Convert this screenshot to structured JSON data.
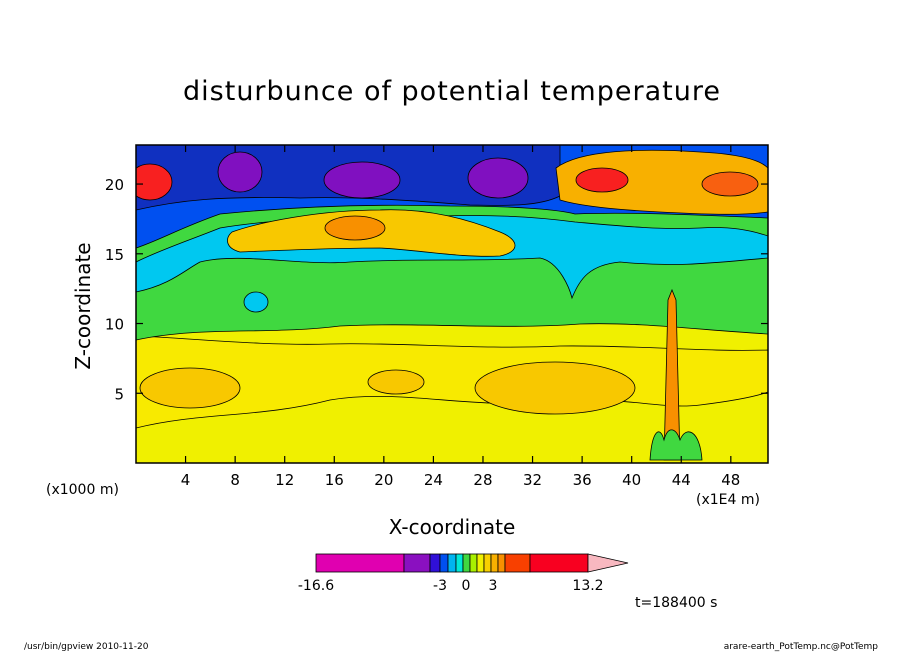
{
  "chart_data": {
    "type": "heatmap",
    "title": "disturbunce of potential temperature",
    "xlabel": "X-coordinate",
    "ylabel": "Z-coordinate",
    "x_unit_left": "(x1000 m)",
    "x_unit_right": "(x1E4 m)",
    "x_ticks": [
      "4",
      "8",
      "12",
      "16",
      "20",
      "24",
      "28",
      "32",
      "36",
      "40",
      "44",
      "48"
    ],
    "x_tick_values": [
      4,
      8,
      12,
      16,
      20,
      24,
      28,
      32,
      36,
      40,
      44,
      48
    ],
    "y_ticks": [
      "5",
      "10",
      "15",
      "20"
    ],
    "y_tick_values": [
      5,
      10,
      15,
      20
    ],
    "xlim": [
      0,
      51
    ],
    "ylim": [
      0,
      22.8
    ],
    "colorbar": {
      "min": -16.6,
      "max": 13.2,
      "labels": [
        "-16.6",
        "-3",
        "0",
        "3",
        "13.2"
      ],
      "label_values": [
        -16.6,
        -3,
        0,
        3,
        13.2
      ],
      "colors": [
        "#e000b0",
        "#8a10c0",
        "#3010d8",
        "#0050f0",
        "#00b4f0",
        "#00e8d8",
        "#40d840",
        "#a8f000",
        "#f0f000",
        "#f8d000",
        "#f8b000",
        "#f89000",
        "#f84000",
        "#f80020",
        "#f88070",
        "#f8b8c0"
      ]
    },
    "time": "t=188400 s",
    "footer_left": "/usr/bin/gpview   2010-11-20",
    "footer_right": "arare-earth_PotTemp.nc@PotTemp"
  }
}
